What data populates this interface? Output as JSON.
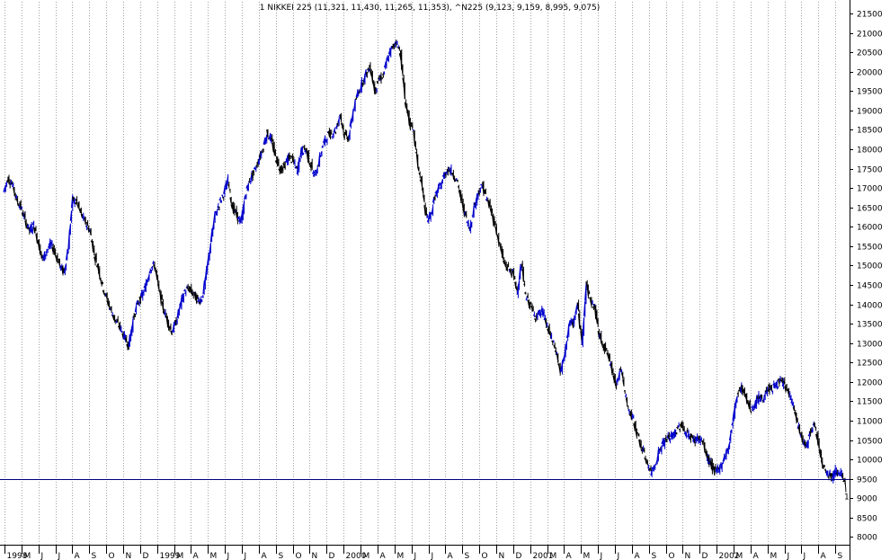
{
  "title": "1 NIKKEI 225 (11,321, 11,430, 11,265, 11,353), ^N225 (9,123, 9,159, 8,995, 9,075)",
  "colors": {
    "up": "#0000cc",
    "down": "#000000",
    "grid": "#a0a0a0",
    "support": "#000080",
    "background": "#ffffff"
  },
  "chart_data": {
    "type": "line",
    "title": "1 NIKKEI 225 (11,321, 11,430, 11,265, 11,353), ^N225 (9,123, 9,159, 8,995, 9,075)",
    "xlabel": "",
    "ylabel": "",
    "grid": true,
    "y_axis_side": "right",
    "ylim": [
      7800,
      21800
    ],
    "y_ticks": [
      8000,
      8500,
      9000,
      9500,
      10000,
      10500,
      11000,
      11500,
      12000,
      12500,
      13000,
      13500,
      14000,
      14500,
      15000,
      15500,
      16000,
      16500,
      17000,
      17500,
      18000,
      18500,
      19000,
      19500,
      20000,
      20500,
      21000,
      21500
    ],
    "x_ticks": [
      "1998",
      "M",
      "J",
      "J",
      "A",
      "S",
      "O",
      "N",
      "D",
      "1999",
      "M",
      "A",
      "M",
      "J",
      "J",
      "A",
      "S",
      "O",
      "N",
      "D",
      "2000",
      "M",
      "A",
      "M",
      "J",
      "J",
      "A",
      "S",
      "O",
      "N",
      "D",
      "2001",
      "M",
      "A",
      "M",
      "J",
      "J",
      "A",
      "S",
      "O",
      "N",
      "D",
      "2002",
      "M",
      "A",
      "M",
      "J",
      "J",
      "A",
      "S"
    ],
    "support_level": 9500,
    "support_marker": "1",
    "series": [
      {
        "values": [
          16900,
          17250,
          17100,
          16700,
          16500,
          16150,
          15900,
          16050,
          15600,
          15150,
          15400,
          15550,
          15300,
          15000,
          14800,
          15500,
          16700,
          16600,
          16300,
          16100,
          15900,
          15300,
          14900,
          14450,
          14100,
          13800,
          13550,
          13400,
          13150,
          12950,
          13600,
          14000,
          14200,
          14500,
          14950,
          15000,
          14350,
          13900,
          13550,
          13300,
          13550,
          14000,
          14350,
          14400,
          14250,
          14100,
          14150,
          14800,
          15600,
          16300,
          16600,
          16850,
          17200,
          16500,
          16300,
          16100,
          16800,
          17200,
          17400,
          17700,
          18000,
          18400,
          18250,
          17800,
          17500,
          17550,
          17800,
          17700,
          17450,
          17950,
          18000,
          17650,
          17300,
          17650,
          18100,
          18350,
          18400,
          18500,
          18900,
          18350,
          18300,
          19000,
          19400,
          19700,
          19950,
          20100,
          19500,
          19800,
          19900,
          20350,
          20600,
          20800,
          20450,
          19300,
          18700,
          18400,
          17600,
          17000,
          16200,
          16300,
          16800,
          17000,
          17300,
          17500,
          17400,
          17200,
          16700,
          16300,
          15950,
          16500,
          16900,
          17050,
          16700,
          16400,
          16000,
          15500,
          15050,
          14900,
          14800,
          14350,
          15050,
          14200,
          14000,
          13700,
          13750,
          13800,
          13400,
          13100,
          12800,
          12250,
          12650,
          13500,
          13500,
          14000,
          13000,
          14500,
          14100,
          13900,
          13200,
          12950,
          12700,
          12300,
          11950,
          12350,
          11700,
          11200,
          11000,
          10600,
          10250,
          9950,
          9650,
          9900,
          10250,
          10450,
          10550,
          10600,
          10750,
          10900,
          10700,
          10600,
          10500,
          10550,
          10450,
          10050,
          9850,
          9650,
          9800,
          10050,
          10300,
          11000,
          11700,
          11850,
          11600,
          11300,
          11400,
          11600,
          11550,
          11850,
          11800,
          11950,
          12000,
          11900,
          11700,
          11400,
          10900,
          10500,
          10300,
          10750,
          10900,
          10300,
          9800,
          9650,
          9550,
          9750,
          9650,
          9350
        ]
      }
    ]
  }
}
